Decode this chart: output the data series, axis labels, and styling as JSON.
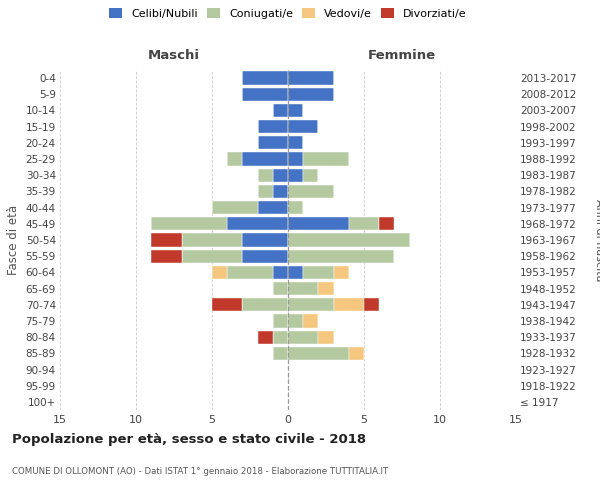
{
  "age_groups": [
    "100+",
    "95-99",
    "90-94",
    "85-89",
    "80-84",
    "75-79",
    "70-74",
    "65-69",
    "60-64",
    "55-59",
    "50-54",
    "45-49",
    "40-44",
    "35-39",
    "30-34",
    "25-29",
    "20-24",
    "15-19",
    "10-14",
    "5-9",
    "0-4"
  ],
  "birth_years": [
    "≤ 1917",
    "1918-1922",
    "1923-1927",
    "1928-1932",
    "1933-1937",
    "1938-1942",
    "1943-1947",
    "1948-1952",
    "1953-1957",
    "1958-1962",
    "1963-1967",
    "1968-1972",
    "1973-1977",
    "1978-1982",
    "1983-1987",
    "1988-1992",
    "1993-1997",
    "1998-2002",
    "2003-2007",
    "2008-2012",
    "2013-2017"
  ],
  "colors": {
    "celibi": "#4472c4",
    "coniugati": "#b5c9a1",
    "vedovi": "#f5c77e",
    "divorziati": "#c0392b"
  },
  "maschi": {
    "celibi": [
      0,
      0,
      0,
      0,
      0,
      0,
      0,
      0,
      1,
      3,
      3,
      4,
      2,
      1,
      1,
      3,
      2,
      2,
      1,
      3,
      3
    ],
    "coniugati": [
      0,
      0,
      0,
      1,
      1,
      1,
      3,
      1,
      3,
      4,
      4,
      5,
      3,
      1,
      1,
      1,
      0,
      0,
      0,
      0,
      0
    ],
    "vedovi": [
      0,
      0,
      0,
      0,
      0,
      0,
      0,
      0,
      1,
      0,
      0,
      0,
      0,
      0,
      0,
      0,
      0,
      0,
      0,
      0,
      0
    ],
    "divorziati": [
      0,
      0,
      0,
      0,
      1,
      0,
      2,
      0,
      0,
      2,
      2,
      0,
      0,
      0,
      0,
      0,
      0,
      0,
      0,
      0,
      0
    ]
  },
  "femmine": {
    "nubili": [
      0,
      0,
      0,
      0,
      0,
      0,
      0,
      0,
      1,
      0,
      0,
      4,
      0,
      0,
      1,
      1,
      1,
      2,
      1,
      3,
      3
    ],
    "coniugate": [
      0,
      0,
      0,
      4,
      2,
      1,
      3,
      2,
      2,
      7,
      8,
      2,
      1,
      3,
      1,
      3,
      0,
      0,
      0,
      0,
      0
    ],
    "vedove": [
      0,
      0,
      0,
      1,
      1,
      1,
      2,
      1,
      1,
      0,
      0,
      0,
      0,
      0,
      0,
      0,
      0,
      0,
      0,
      0,
      0
    ],
    "divorziate": [
      0,
      0,
      0,
      0,
      0,
      0,
      1,
      0,
      0,
      0,
      0,
      1,
      0,
      0,
      0,
      0,
      0,
      0,
      0,
      0,
      0
    ]
  },
  "xlim": 15,
  "title": "Popolazione per età, sesso e stato civile - 2018",
  "subtitle": "COMUNE DI OLLOMONT (AO) - Dati ISTAT 1° gennaio 2018 - Elaborazione TUTTITALIA.IT",
  "ylabel_left": "Fasce di età",
  "ylabel_right": "Anni di nascita",
  "legend_labels": [
    "Celibi/Nubili",
    "Coniugati/e",
    "Vedovi/e",
    "Divorziati/e"
  ],
  "maschi_label": "Maschi",
  "femmine_label": "Femmine"
}
